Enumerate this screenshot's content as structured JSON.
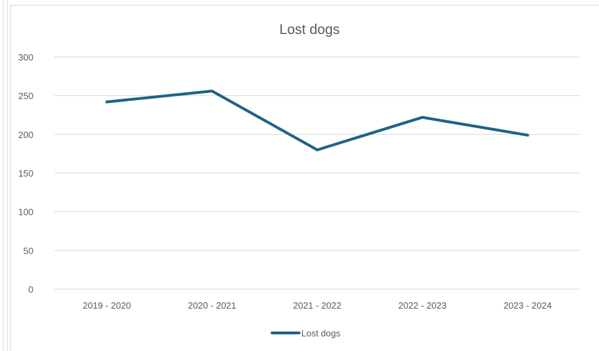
{
  "chart_data": {
    "type": "line",
    "title": "Lost dogs",
    "xlabel": "",
    "ylabel": "",
    "categories": [
      "2019 - 2020",
      "2020 - 2021",
      "2021 - 2022",
      "2022 - 2023",
      "2023 - 2024"
    ],
    "series": [
      {
        "name": "Lost dogs",
        "values": [
          242,
          256,
          180,
          222,
          199
        ],
        "color": "#1f6286"
      }
    ],
    "ylim": [
      0,
      300
    ],
    "yticks": [
      0,
      50,
      100,
      150,
      200,
      250,
      300
    ],
    "grid": true,
    "legend": "bottom"
  }
}
